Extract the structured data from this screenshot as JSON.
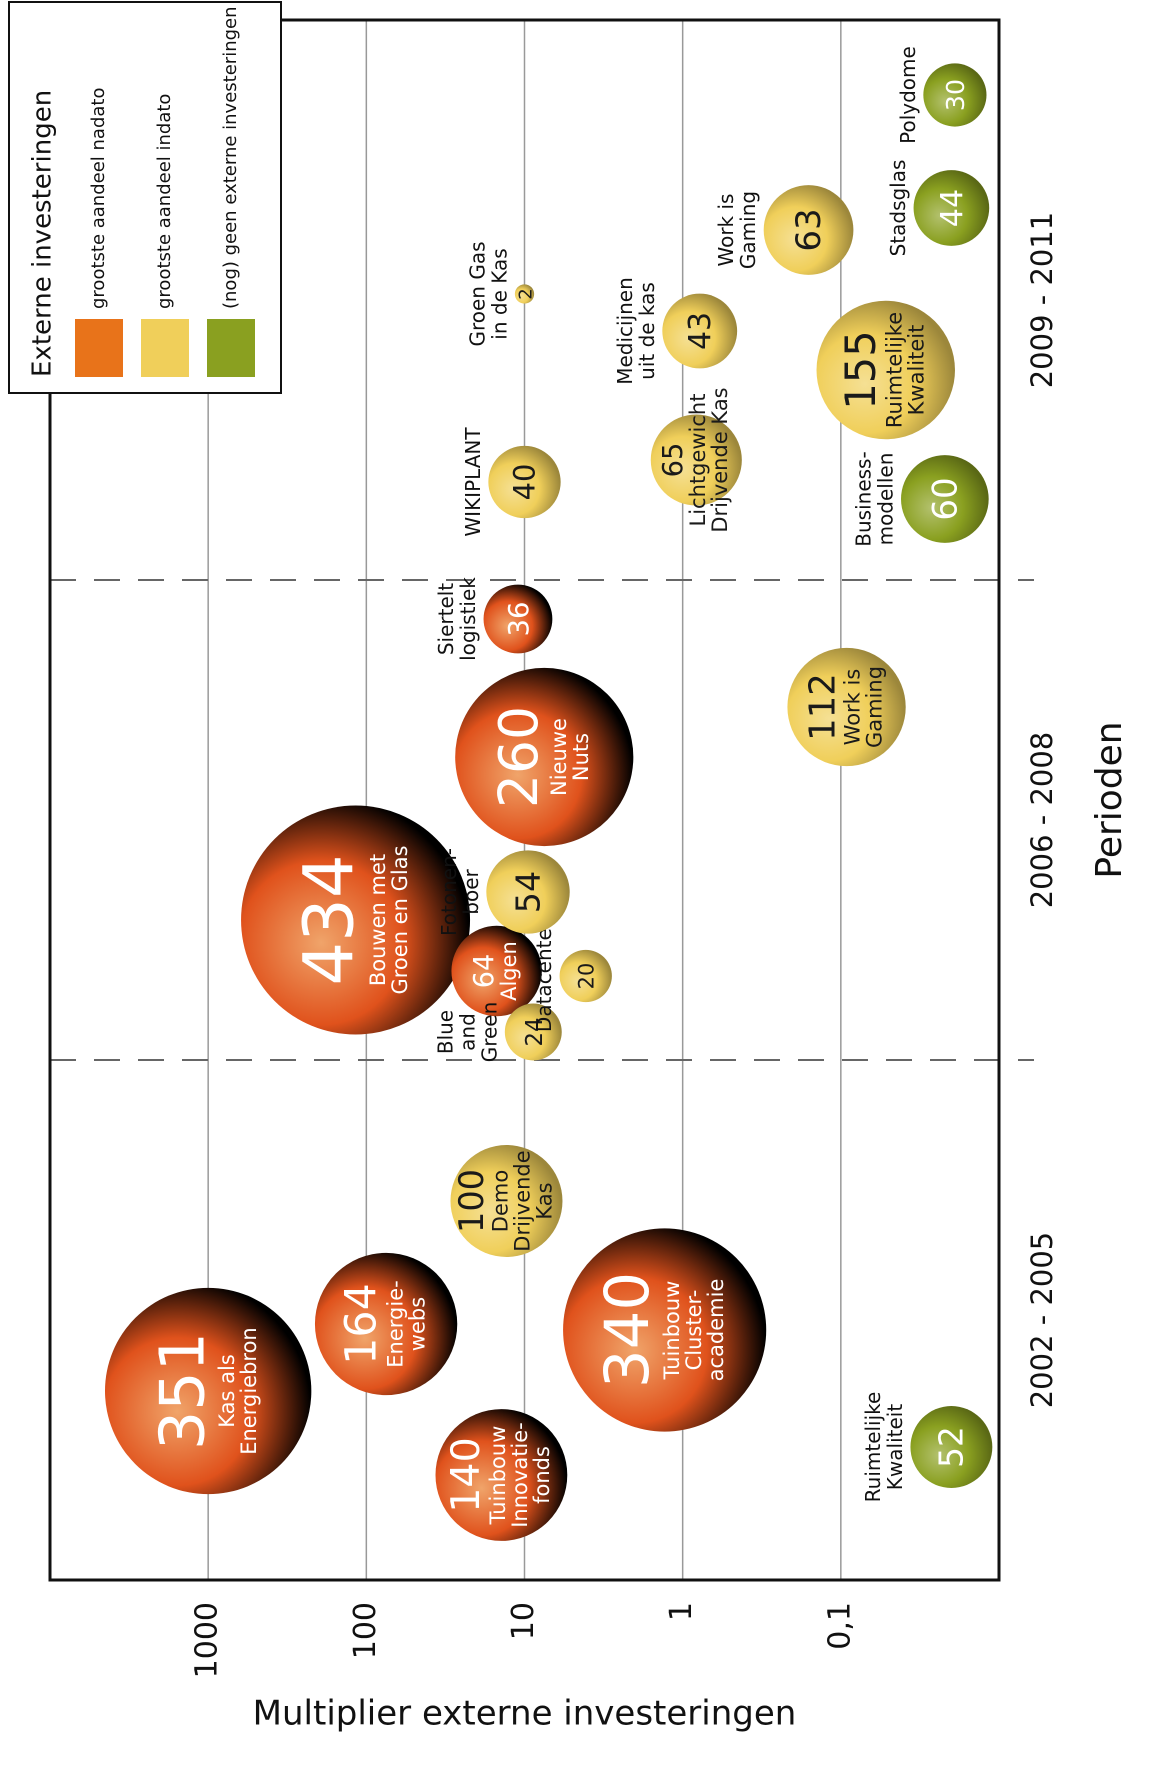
{
  "chart_data": {
    "type": "bubble",
    "x_label": "Perioden",
    "y_label": "Multiplier externe investeringen",
    "categories": [
      "2002 - 2005",
      "2006 - 2008",
      "2009 - 2011"
    ],
    "ylim": [
      0.01,
      10000
    ],
    "yticks": [
      1000,
      100,
      10,
      1,
      {
        "value": 0.1,
        "label": "0,1"
      }
    ],
    "log_y": true,
    "grid": true,
    "legend_title": "Externe investeringen",
    "legend_position": "top-right",
    "series": [
      {
        "name": "grootste aandeel nadato",
        "color": "#e8731a",
        "x": [
          "2002 - 2005",
          "2002 - 2005",
          "2002 - 2005",
          "2002 - 2005",
          "2006 - 2008",
          "2006 - 2008",
          "2006 - 2008",
          "2006 - 2008"
        ],
        "values": [
          1000,
          14,
          75,
          1.3,
          117,
          15,
          7.5,
          11
        ],
        "sizes": [
          351,
          140,
          164,
          340,
          434,
          64,
          260,
          36
        ],
        "labels": [
          [
            "Kas als",
            "Energiebron"
          ],
          [
            "Tuinbouw",
            "Innovatie-",
            "fonds"
          ],
          [
            "Energie-",
            "webs"
          ],
          [
            "Tuinbouw",
            "Cluster-",
            "academie"
          ],
          [
            "Bouwen met",
            "Groen en Glas"
          ],
          [
            "Algen"
          ],
          [
            "Nieuwe",
            "Nuts"
          ],
          [
            "Siertelt",
            "logistiek"
          ]
        ]
      },
      {
        "name": "grootste aandeel indato",
        "color": "#f0cf5a",
        "x": [
          "2002 - 2005",
          "2006 - 2008",
          "2006 - 2008",
          "2006 - 2008",
          "2006 - 2008",
          "2009 - 2011",
          "2009 - 2011",
          "2009 - 2011",
          "2009 - 2011",
          "2009 - 2011",
          "2009 - 2011"
        ],
        "values": [
          13,
          8.8,
          4.1,
          9.5,
          0.092,
          10,
          0.82,
          10,
          0.78,
          0.052,
          0.16
        ],
        "sizes": [
          100,
          24,
          20,
          54,
          112,
          40,
          65,
          2,
          43,
          155,
          63
        ],
        "labels": [
          [
            "Demo",
            "Drijvende",
            "Kas"
          ],
          [
            "Blue",
            "and",
            "Green"
          ],
          [
            "Datacenter"
          ],
          [
            "Fotonen-",
            "boer"
          ],
          [
            "Work is",
            "Gaming"
          ],
          [
            "WIKIPLANT"
          ],
          [
            "Lichtgewicht",
            "Drijvende Kas"
          ],
          [
            "Groen Gas",
            "in de Kas"
          ],
          [
            "Medicijnen",
            "uit de kas"
          ],
          [
            "Ruimtelijke",
            "Kwaliteit"
          ],
          [
            "Work is",
            "Gaming"
          ]
        ]
      },
      {
        "name": "(nog) geen externe investeringen",
        "color": "#8aa020",
        "x": [
          "2002 - 2005",
          "2009 - 2011",
          "2009 - 2011",
          "2009 - 2011"
        ],
        "values": [
          0.02,
          0.022,
          0.02,
          0.019
        ],
        "sizes": [
          52,
          60,
          44,
          30
        ],
        "labels": [
          [
            "Ruimtelijke",
            "Kwaliteit"
          ],
          [
            "Business-",
            "modellen"
          ],
          [
            "Stadsglas"
          ],
          [
            "Polydome"
          ]
        ]
      }
    ]
  }
}
